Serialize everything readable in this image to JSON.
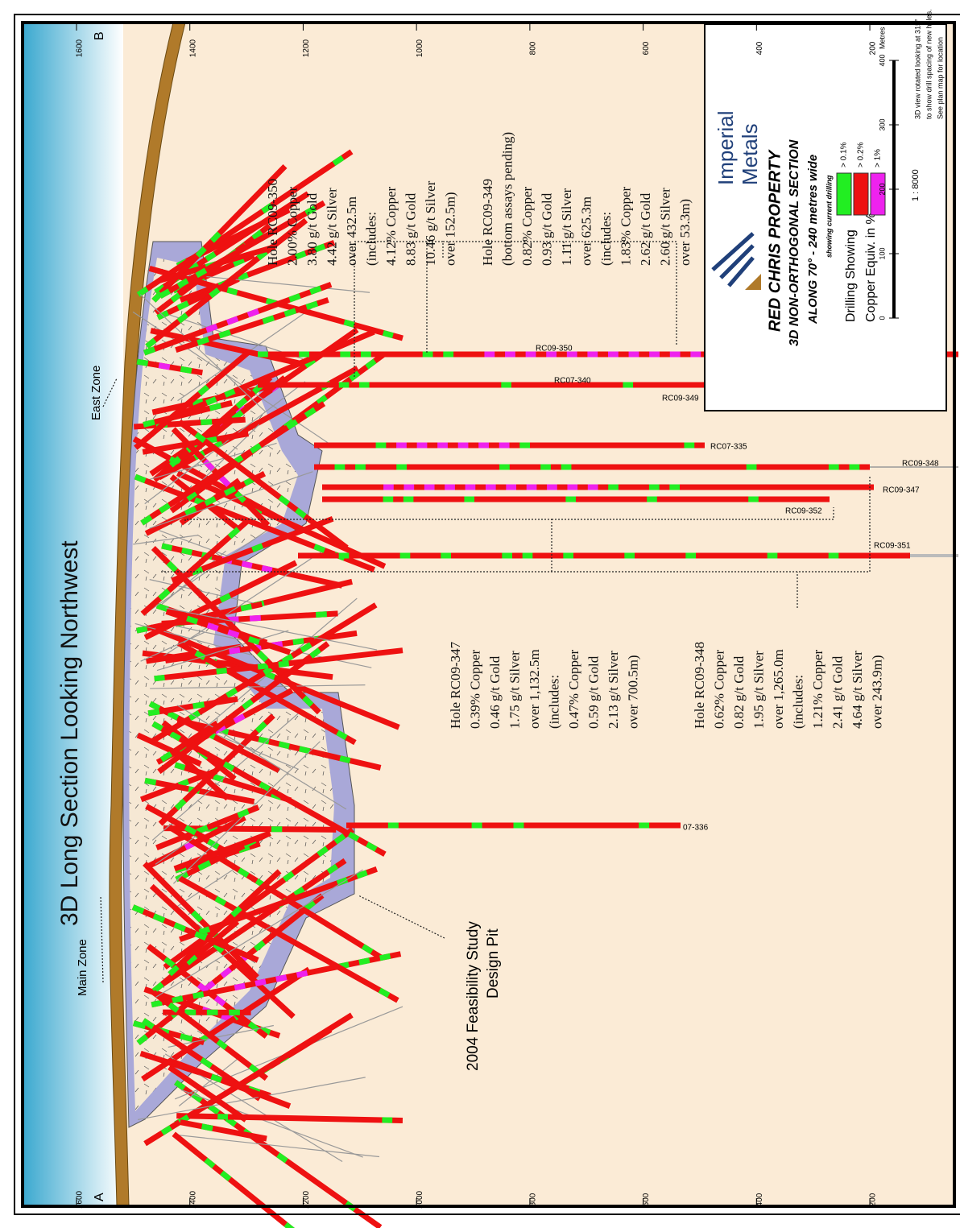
{
  "title": "3D Long Section Looking Northwest",
  "elevation_ticks": [
    1600,
    1400,
    1200,
    1000,
    800,
    600,
    400,
    200
  ],
  "section_ends": [
    "A",
    "B"
  ],
  "zones": [
    "Main Zone",
    "East Zone"
  ],
  "pit_label": [
    "2004 Feasibility Study",
    "Design Pit"
  ],
  "holes": [
    "RC09-350",
    "RC07-340",
    "RC09-349",
    "RC07-335",
    "RC09-348",
    "RC09-347",
    "RC09-352",
    "RC09-351",
    "07-336"
  ],
  "annotations": [
    [
      "Hole RC09-350",
      "2.00% Copper",
      "3.80 g/t Gold",
      "4.42 g/t Silver",
      "over 432.5m",
      "(includes:",
      "4.12% Copper",
      "8.83 g/t Gold",
      "10.46 g/t Silver",
      "over 152.5m)"
    ],
    [
      "Hole RC09-349",
      "(bottom assays pending)",
      "0.82% Copper",
      "0.93 g/t Gold",
      "1.11 g/t Silver",
      "over 625.3m",
      "(includes:",
      "1.83% Copper",
      "2.62 g/t Gold",
      "2.60 g/t Silver",
      "over 53.3m)"
    ],
    [
      "Hole RC09-347",
      "0.39% Copper",
      "0.46 g/t Gold",
      "1.75 g/t Silver",
      "over 1,132.5m",
      "(includes:",
      "0.47% Copper",
      "0.59 g/t Gold",
      "2.13 g/t Silver",
      "over 700.5m)"
    ],
    [
      "Hole RC09-348",
      "0.62% Copper",
      "0.82 g/t Gold",
      "1.95 g/t Silver",
      "over 1,265.0m",
      "(includes:",
      "1.21% Copper",
      "2.41 g/t Gold",
      "4.64 g/t Silver",
      "over 243.9m)"
    ]
  ],
  "legend": {
    "company": [
      "Imperial",
      "Metals"
    ],
    "property": "RED CHRIS PROPERTY",
    "section": "3D NON-ORTHOGONAL SECTION",
    "along": "ALONG 70° - 240 metres wide",
    "showing": "showing current drilling",
    "drilling": [
      "Drilling Showing",
      "Copper Equiv. in %"
    ],
    "grades": [
      {
        "label": "> 0.1%",
        "color": "#22ee22"
      },
      {
        "label": "> 0.2%",
        "color": "#ee1111"
      },
      {
        "label": "> 1%",
        "color": "#ee22ee"
      }
    ],
    "scale_ticks": [
      0,
      100,
      200,
      300,
      400
    ],
    "scale_unit": "Metres",
    "scale_ratio": "1 : 8000",
    "notes": [
      "3D view rotated looking at 315°",
      "to show drill spacing of new holes.",
      "See plan map for location"
    ]
  }
}
